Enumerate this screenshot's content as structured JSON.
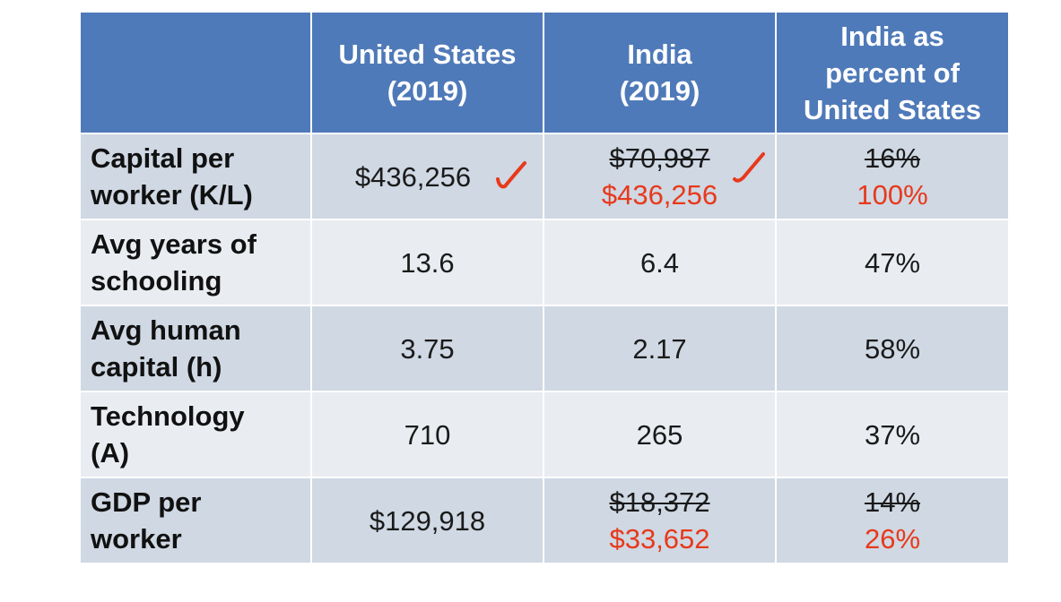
{
  "table": {
    "headers": [
      "",
      "United States (2019)",
      "India (2019)",
      "India as percent of United States"
    ],
    "header_lines": [
      [],
      [
        "United States",
        "(2019)"
      ],
      [
        "India",
        "(2019)"
      ],
      [
        "India as",
        "percent of",
        "United States"
      ]
    ],
    "rows": [
      {
        "label_lines": [
          "Capital per",
          "worker (K/L)"
        ],
        "us": "$436,256",
        "india_original": "$70,987",
        "india_revised": "$436,256",
        "pct_original": "16%",
        "pct_revised": "100%"
      },
      {
        "label_lines": [
          "Avg years of",
          "schooling"
        ],
        "us": "13.6",
        "india": "6.4",
        "pct": "47%"
      },
      {
        "label_lines": [
          "Avg human",
          "capital (h)"
        ],
        "us": "3.75",
        "india": "2.17",
        "pct": "58%"
      },
      {
        "label_lines": [
          "Technology",
          "(A)"
        ],
        "us": "710",
        "india": "265",
        "pct": "37%"
      },
      {
        "label_lines": [
          "GDP per",
          "worker"
        ],
        "us": "$129,918",
        "india_original": "$18,372",
        "india_revised": "$33,652",
        "pct_original": "14%",
        "pct_revised": "26%"
      }
    ]
  },
  "colors": {
    "header_bg": "#4f7ab9",
    "row_dark": "#cfd8e3",
    "row_light": "#e9edf2",
    "annotation_red": "#e8391b"
  },
  "icons": [
    "checkmark-annotation-icon"
  ]
}
